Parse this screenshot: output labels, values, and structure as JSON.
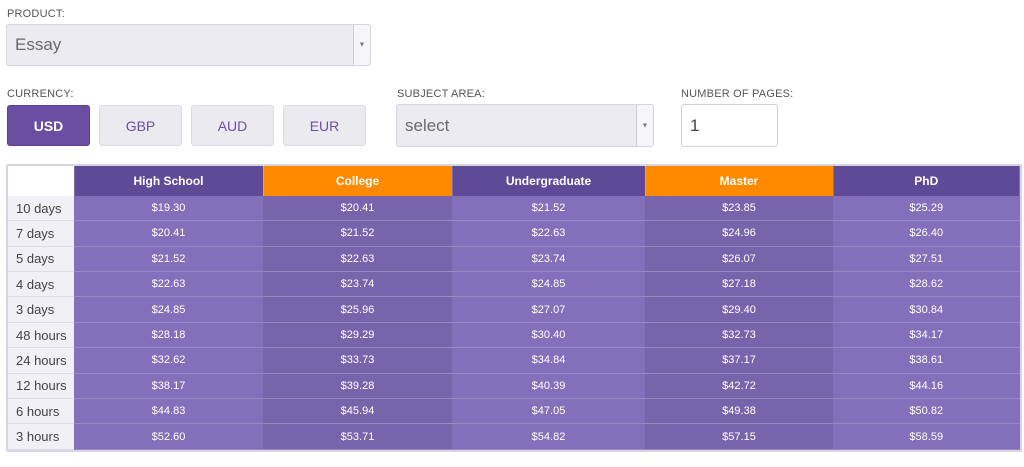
{
  "product": {
    "label": "PRODUCT:",
    "value": "Essay"
  },
  "currency": {
    "label": "CURRENCY:",
    "options": [
      "USD",
      "GBP",
      "AUD",
      "EUR"
    ],
    "selected": "USD"
  },
  "subject": {
    "label": "SUBJECT AREA:",
    "value": "select"
  },
  "pages": {
    "label": "NUMBER OF PAGES:",
    "value": "1"
  },
  "colors": {
    "accent_purple": "#6a4ea2",
    "accent_orange": "#ff8a00"
  },
  "table": {
    "columns": [
      "High School",
      "College",
      "Undergraduate",
      "Master",
      "PhD"
    ],
    "rows": [
      {
        "label": "10 days",
        "values": [
          "$19.30",
          "$20.41",
          "$21.52",
          "$23.85",
          "$25.29"
        ]
      },
      {
        "label": "7 days",
        "values": [
          "$20.41",
          "$21.52",
          "$22.63",
          "$24.96",
          "$26.40"
        ]
      },
      {
        "label": "5 days",
        "values": [
          "$21.52",
          "$22.63",
          "$23.74",
          "$26.07",
          "$27.51"
        ]
      },
      {
        "label": "4 days",
        "values": [
          "$22.63",
          "$23.74",
          "$24.85",
          "$27.18",
          "$28.62"
        ]
      },
      {
        "label": "3 days",
        "values": [
          "$24.85",
          "$25.96",
          "$27.07",
          "$29.40",
          "$30.84"
        ]
      },
      {
        "label": "48 hours",
        "values": [
          "$28.18",
          "$29.29",
          "$30.40",
          "$32.73",
          "$34.17"
        ]
      },
      {
        "label": "24 hours",
        "values": [
          "$32.62",
          "$33.73",
          "$34.84",
          "$37.17",
          "$38.61"
        ]
      },
      {
        "label": "12 hours",
        "values": [
          "$38.17",
          "$39.28",
          "$40.39",
          "$42.72",
          "$44.16"
        ]
      },
      {
        "label": "6 hours",
        "values": [
          "$44.83",
          "$45.94",
          "$47.05",
          "$49.38",
          "$50.82"
        ]
      },
      {
        "label": "3 hours",
        "values": [
          "$52.60",
          "$53.71",
          "$54.82",
          "$57.15",
          "$58.59"
        ]
      }
    ]
  }
}
